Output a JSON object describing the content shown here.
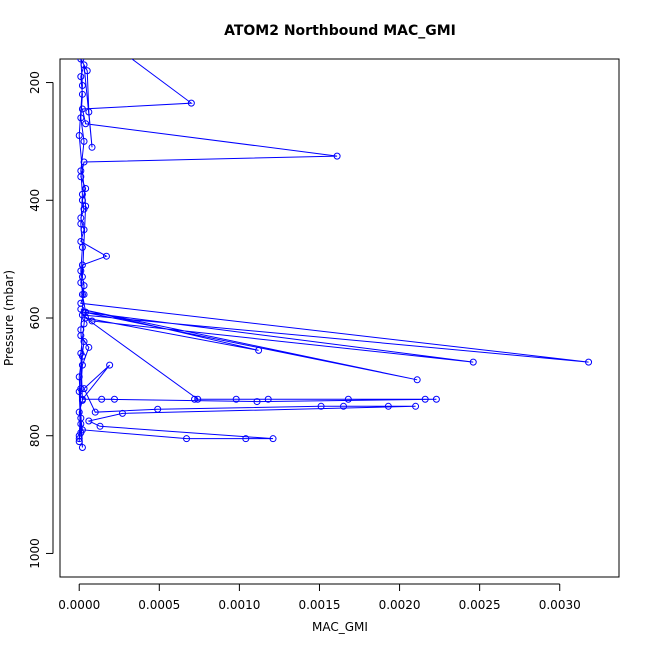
{
  "chart_data": {
    "type": "line",
    "title": "ATOM2 Northbound MAC_GMI",
    "xlabel": "MAC_GMI",
    "ylabel": "Pressure (mbar)",
    "xlim": [
      -0.00012,
      0.00337
    ],
    "ylim": [
      1040,
      160
    ],
    "y_reversed": true,
    "grid": false,
    "x_ticks": [
      0.0,
      0.0005,
      0.001,
      0.0015,
      0.002,
      0.0025,
      0.003
    ],
    "x_tick_labels": [
      "0.0000",
      "0.0005",
      "0.0010",
      "0.0015",
      "0.0020",
      "0.0025",
      "0.0030"
    ],
    "y_ticks": [
      200,
      400,
      600,
      800,
      1000
    ],
    "y_tick_labels": [
      "200",
      "400",
      "600",
      "800",
      "1000"
    ],
    "series": [
      {
        "color": "#0000ff",
        "marker": "open-circle",
        "points": [
          [
            0.00028,
            150
          ],
          [
            0.0007,
            235
          ],
          [
            2e-05,
            245
          ],
          [
            4e-05,
            270
          ],
          [
            0.00161,
            325
          ],
          [
            3e-05,
            335
          ],
          [
            1e-05,
            360
          ],
          [
            4e-05,
            380
          ],
          [
            2e-05,
            400
          ],
          [
            3e-05,
            415
          ],
          [
            1e-05,
            430
          ],
          [
            3e-05,
            450
          ],
          [
            1e-05,
            470
          ],
          [
            0.00017,
            495
          ],
          [
            2e-05,
            510
          ],
          [
            1e-05,
            540
          ],
          [
            3e-05,
            560
          ],
          [
            1e-05,
            575
          ],
          [
            0.00318,
            675
          ],
          [
            2e-05,
            595
          ],
          [
            8e-05,
            605
          ],
          [
            0.00246,
            675
          ],
          [
            3e-05,
            590
          ],
          [
            0.00211,
            705
          ],
          [
            1e-05,
            585
          ],
          [
            0.00112,
            655
          ],
          [
            4e-05,
            600
          ],
          [
            0.00074,
            738
          ],
          [
            0.00072,
            738
          ],
          [
            0.00098,
            738
          ],
          [
            0.00118,
            738
          ],
          [
            0.00168,
            738
          ],
          [
            0.00216,
            738
          ],
          [
            0.00223,
            738
          ],
          [
            0.00111,
            742
          ],
          [
            0.00014,
            738
          ],
          [
            0.00022,
            738
          ],
          [
            2e-05,
            738
          ],
          [
            0.00019,
            680
          ],
          [
            3e-05,
            720
          ],
          [
            0.0001,
            760
          ],
          [
            0.00049,
            755
          ],
          [
            0.00151,
            750
          ],
          [
            0.00165,
            750
          ],
          [
            0.00193,
            750
          ],
          [
            0.0021,
            750
          ],
          [
            0.00027,
            762
          ],
          [
            6e-05,
            775
          ],
          [
            0.00013,
            784
          ],
          [
            0.00121,
            805
          ],
          [
            0.00104,
            805
          ],
          [
            0.00067,
            805
          ],
          [
            2e-05,
            790
          ],
          [
            1e-05,
            770
          ],
          [
            0.0,
            800
          ],
          [
            0.0,
            810
          ],
          [
            1e-05,
            720
          ],
          [
            2e-05,
            680
          ],
          [
            6e-05,
            650
          ],
          [
            1e-05,
            630
          ],
          [
            3e-05,
            640
          ],
          [
            0.0,
            700
          ],
          [
            2e-05,
            820
          ],
          [
            1e-05,
            780
          ],
          [
            0.0,
            760
          ],
          [
            2e-05,
            740
          ],
          [
            1e-05,
            660
          ],
          [
            3e-05,
            610
          ],
          [
            4e-05,
            590
          ],
          [
            2e-05,
            560
          ],
          [
            1e-05,
            520
          ],
          [
            2e-05,
            480
          ],
          [
            1e-05,
            440
          ],
          [
            2e-05,
            390
          ],
          [
            1e-05,
            350
          ],
          [
            3e-05,
            300
          ],
          [
            1e-05,
            260
          ],
          [
            2e-05,
            220
          ],
          [
            1e-05,
            190
          ],
          [
            3e-05,
            170
          ],
          [
            8e-05,
            310
          ],
          [
            6e-05,
            250
          ],
          [
            5e-05,
            180
          ],
          [
            1e-05,
            160
          ],
          [
            2e-05,
            205
          ],
          [
            0.0,
            290
          ],
          [
            4e-05,
            410
          ],
          [
            2e-05,
            530
          ],
          [
            3e-05,
            545
          ],
          [
            1e-05,
            620
          ],
          [
            2e-05,
            665
          ],
          [
            0.0,
            725
          ],
          [
            1e-05,
            795
          ],
          [
            0.0,
            805
          ]
        ]
      }
    ]
  }
}
